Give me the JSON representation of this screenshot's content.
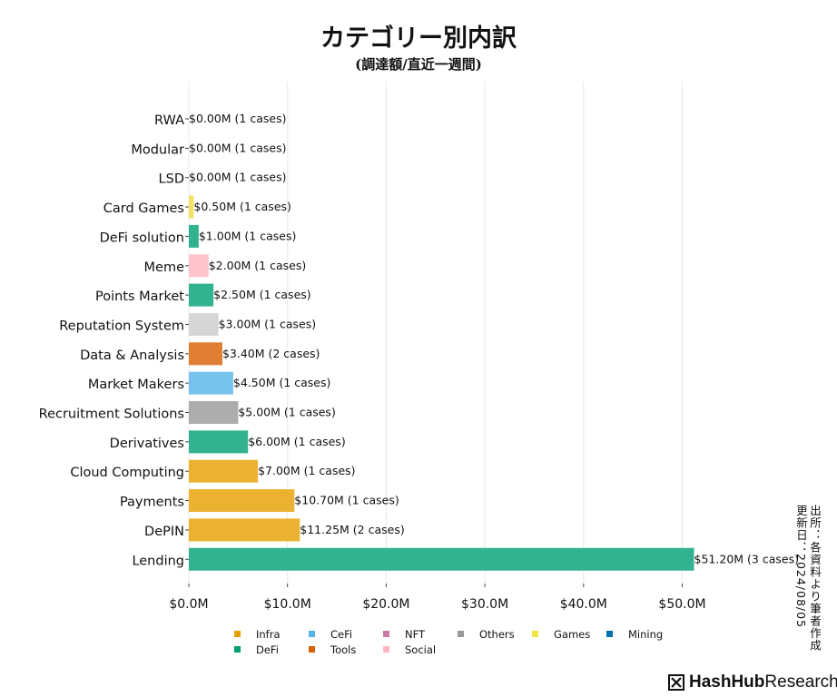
{
  "header": {
    "title": "カテゴリー別内訳",
    "subtitle": "(調達額/直近一週間)"
  },
  "source": {
    "line1": "出所：各資料より筆者作成",
    "line2": "更新日：2024/08/05"
  },
  "brand": {
    "name_bold": "HashHub",
    "name_regular": "Research",
    "icon": "hashhub-logo-icon"
  },
  "legend": {
    "items": [
      {
        "label": "Infra",
        "color": "#E69F00"
      },
      {
        "label": "CeFi",
        "color": "#56B4E9"
      },
      {
        "label": "NFT",
        "color": "#CC79A7"
      },
      {
        "label": "Others",
        "color": "#999999"
      },
      {
        "label": "Games",
        "color": "#F0E442"
      },
      {
        "label": "Mining",
        "color": "#0072B2"
      },
      {
        "label": "DeFi",
        "color": "#009E73"
      },
      {
        "label": "Tools",
        "color": "#D55E00"
      },
      {
        "label": "Social",
        "color": "#FFB6C1"
      }
    ]
  },
  "chart_data": {
    "type": "bar",
    "orientation": "horizontal",
    "title": "カテゴリー別内訳",
    "subtitle": "(調達額/直近一週間)",
    "xlim": [
      0,
      55
    ],
    "xticks": [
      "$0.0M",
      "$10.0M",
      "$20.0M",
      "$30.0M",
      "$40.0M",
      "$50.0M"
    ],
    "xtick_values": [
      0,
      10,
      20,
      30,
      40,
      50
    ],
    "grid": "vertical",
    "categories": [
      "RWA",
      "Modular",
      "LSD",
      "Card Games",
      "DeFi solution",
      "Meme",
      "Points Market",
      "Reputation System",
      "Data & Analysis",
      "Market Makers",
      "Recruitment Solutions",
      "Derivatives",
      "Cloud Computing",
      "Payments",
      "DePIN",
      "Lending"
    ],
    "values": [
      0.0,
      0.0,
      0.0,
      0.5,
      1.0,
      2.0,
      2.5,
      3.0,
      3.4,
      4.5,
      5.0,
      6.0,
      7.0,
      10.7,
      11.25,
      51.2
    ],
    "labels": [
      "$0.00M (1 cases)",
      "$0.00M (1 cases)",
      "$0.00M (1 cases)",
      "$0.50M (1 cases)",
      "$1.00M (1 cases)",
      "$2.00M (1 cases)",
      "$2.50M (1 cases)",
      "$3.00M (1 cases)",
      "$3.40M (2 cases)",
      "$4.50M (1 cases)",
      "$5.00M (1 cases)",
      "$6.00M (1 cases)",
      "$7.00M (1 cases)",
      "$10.70M (1 cases)",
      "$11.25M (2 cases)",
      "$51.20M (3 cases)"
    ],
    "colors": [
      "#ffffff",
      "#ffffff",
      "#ffffff",
      "#F3E365",
      "#33B28F",
      "#FFC4CE",
      "#33B28F",
      "#D6D6D6",
      "#E07F33",
      "#78C3EE",
      "#ADADAD",
      "#33B28F",
      "#EBB232",
      "#EBB232",
      "#EBB232",
      "#33B28F"
    ]
  }
}
